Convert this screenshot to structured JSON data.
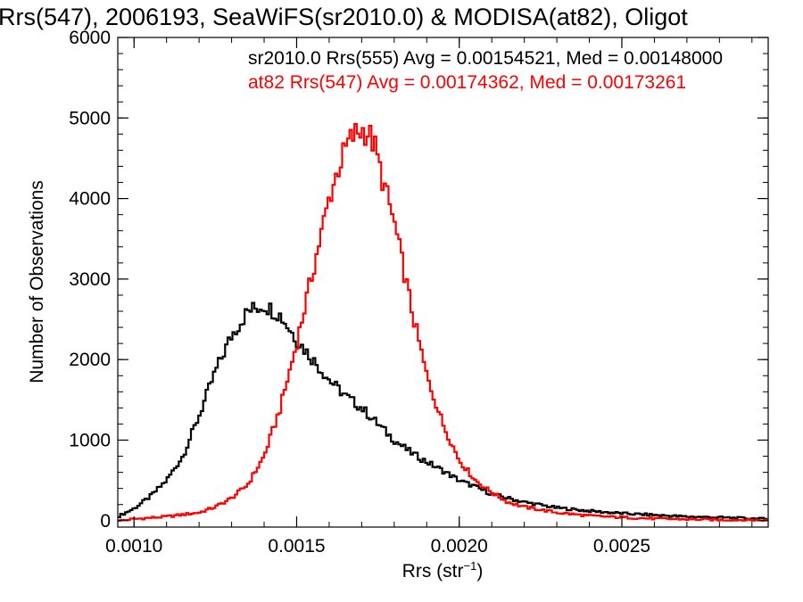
{
  "chart_data": {
    "type": "histogram",
    "title": "Rrs(547), 2006193, SeaWiFS(sr2010.0) & MODISA(at82), Oligot",
    "xlabel_main": "Rrs (str",
    "xlabel_sup": "−1",
    "xlabel_close": ")",
    "ylabel": "Number of Observations",
    "xlim": [
      0.00095,
      0.00295
    ],
    "ylim": [
      -80,
      6000
    ],
    "xticks": [
      0.001,
      0.0015,
      0.002,
      0.0025
    ],
    "xtick_labels": [
      "0.0010",
      "0.0015",
      "0.0020",
      "0.0025"
    ],
    "xminor_step": 0.0001,
    "yticks": [
      0,
      1000,
      2000,
      3000,
      4000,
      5000,
      6000
    ],
    "ytick_labels": [
      "0",
      "1000",
      "2000",
      "3000",
      "4000",
      "5000",
      "6000"
    ],
    "yminor_step": 200,
    "grid": false,
    "annotations": [
      {
        "text": "sr2010.0 Rrs(555) Avg = 0.00154521, Med = 0.00148000",
        "color": "#000000"
      },
      {
        "text": "at82 Rrs(547) Avg = 0.00174362, Med = 0.00173261",
        "color": "#ff0000"
      }
    ],
    "bin_width": 7.5e-06,
    "series": [
      {
        "color": "#000000",
        "anchors_x": [
          0.00095,
          0.001,
          0.00105,
          0.0011,
          0.00115,
          0.0012,
          0.00125,
          0.0013,
          0.00135,
          0.0014,
          0.00145,
          0.0015,
          0.00155,
          0.0016,
          0.00165,
          0.0017,
          0.00175,
          0.0018,
          0.00185,
          0.0019,
          0.00195,
          0.002,
          0.00205,
          0.0021,
          0.0022,
          0.0023,
          0.0024,
          0.0025,
          0.0026,
          0.0027,
          0.0028,
          0.00295
        ],
        "anchors_y": [
          50,
          150,
          300,
          500,
          800,
          1300,
          1850,
          2300,
          2600,
          2680,
          2550,
          2250,
          2000,
          1750,
          1550,
          1400,
          1200,
          1000,
          850,
          730,
          620,
          500,
          420,
          330,
          230,
          160,
          120,
          90,
          70,
          50,
          40,
          20
        ]
      },
      {
        "color": "#ff0000",
        "anchors_x": [
          0.00095,
          0.001,
          0.0011,
          0.0012,
          0.00125,
          0.0013,
          0.00135,
          0.0014,
          0.00145,
          0.0015,
          0.00155,
          0.0016,
          0.00163,
          0.00166,
          0.00168,
          0.0017,
          0.00172,
          0.00174,
          0.00176,
          0.00178,
          0.0018,
          0.00183,
          0.00186,
          0.0019,
          0.00195,
          0.002,
          0.00205,
          0.0021,
          0.00215,
          0.0022,
          0.0023,
          0.0024,
          0.0025,
          0.0026,
          0.0028,
          0.00295
        ],
        "anchors_y": [
          0,
          20,
          50,
          100,
          170,
          280,
          450,
          800,
          1400,
          2200,
          3100,
          4000,
          4400,
          4700,
          4800,
          4850,
          4820,
          4650,
          4300,
          4000,
          3700,
          3100,
          2500,
          1800,
          1200,
          750,
          500,
          350,
          230,
          170,
          100,
          60,
          40,
          25,
          10,
          5
        ]
      }
    ]
  }
}
